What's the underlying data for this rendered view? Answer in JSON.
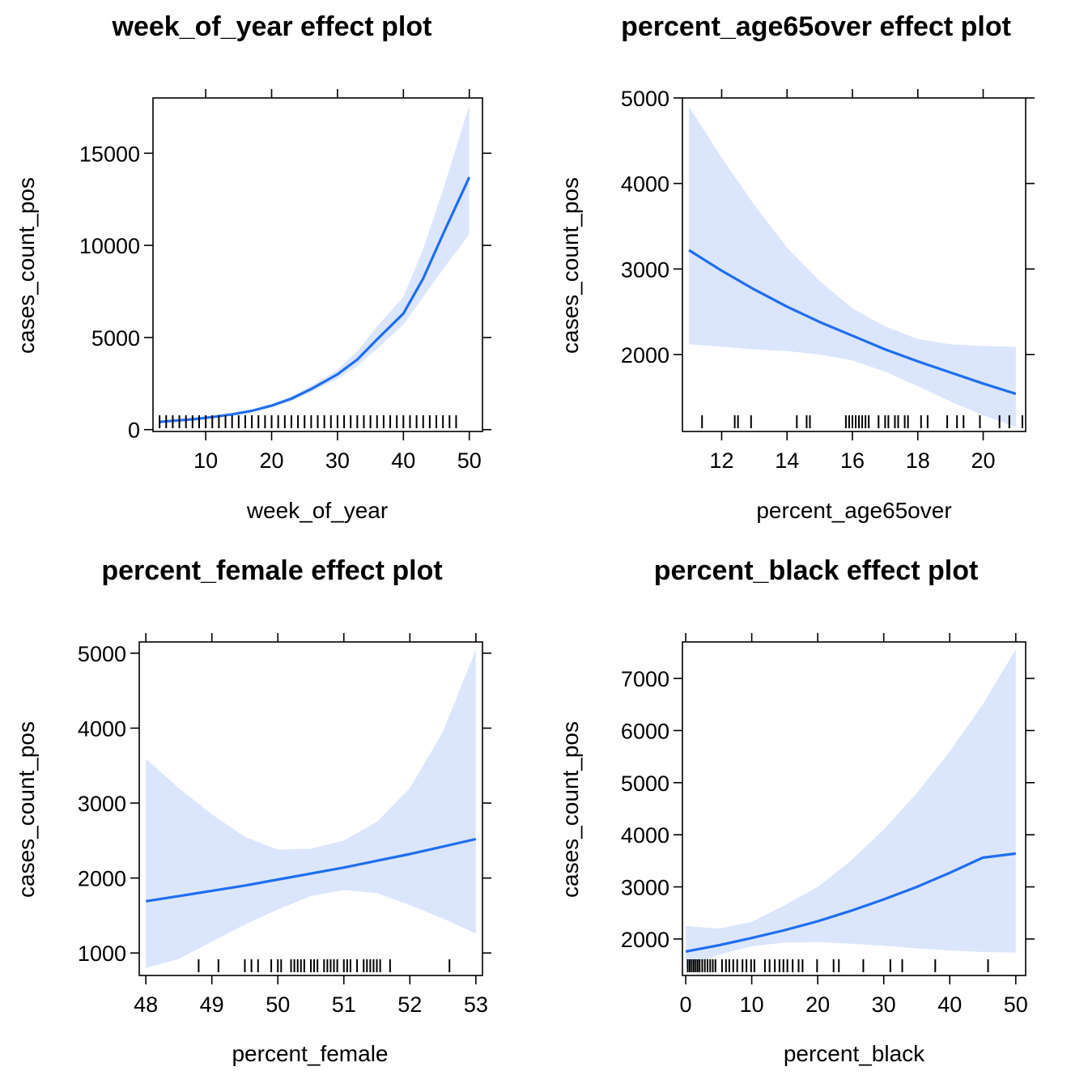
{
  "chart_data": [
    {
      "type": "line",
      "title": "week_of_year effect plot",
      "xlabel": "week_of_year",
      "ylabel": "cases_count_pos",
      "xlim": [
        2,
        52
      ],
      "ylim": [
        -100,
        18000
      ],
      "xticks": [
        10,
        20,
        30,
        40,
        50
      ],
      "yticks": [
        0,
        5000,
        10000,
        15000
      ],
      "colors": {
        "line": "#1f6ef0",
        "band": "#dbe6fd"
      },
      "series": [
        {
          "x": [
            3,
            5,
            8,
            11,
            14,
            17,
            20,
            23,
            26,
            30,
            33,
            36,
            40,
            43,
            46,
            50
          ],
          "y": [
            420,
            480,
            560,
            680,
            830,
            1020,
            1300,
            1680,
            2200,
            3000,
            3800,
            4900,
            6300,
            8200,
            10600,
            13700
          ],
          "lower": [
            380,
            440,
            520,
            630,
            770,
            960,
            1220,
            1570,
            2050,
            2750,
            3450,
            4400,
            5700,
            7200,
            8700,
            10600
          ],
          "upper": [
            470,
            530,
            610,
            740,
            900,
            1090,
            1400,
            1800,
            2380,
            3250,
            4250,
            5600,
            7200,
            9800,
            13000,
            17600
          ]
        }
      ],
      "rug": [
        3,
        4,
        5,
        6,
        7,
        8,
        9,
        10,
        11,
        12,
        13,
        14,
        15,
        16,
        17,
        18,
        19,
        20,
        21,
        22,
        23,
        24,
        25,
        26,
        27,
        28,
        29,
        30,
        31,
        32,
        33,
        34,
        35,
        36,
        37,
        38,
        39,
        40,
        41,
        42,
        43,
        44,
        45,
        46,
        47,
        48
      ]
    },
    {
      "type": "line",
      "title": "percent_age65over effect plot",
      "xlabel": "percent_age65over",
      "ylabel": "cases_count_pos",
      "xlim": [
        10.8,
        21.3
      ],
      "ylim": [
        1100,
        5000
      ],
      "xticks": [
        12,
        14,
        16,
        18,
        20
      ],
      "yticks": [
        2000,
        3000,
        4000,
        5000
      ],
      "colors": {
        "line": "#1f6ef0",
        "band": "#dbe6fd"
      },
      "series": [
        {
          "x": [
            11,
            12,
            13,
            14,
            15,
            16,
            17,
            18,
            19,
            20,
            21
          ],
          "y": [
            3220,
            2980,
            2760,
            2560,
            2380,
            2220,
            2060,
            1920,
            1790,
            1660,
            1540
          ],
          "lower": [
            2120,
            2090,
            2060,
            2040,
            2000,
            1930,
            1800,
            1630,
            1450,
            1290,
            1150
          ],
          "upper": [
            4900,
            4300,
            3750,
            3250,
            2860,
            2540,
            2330,
            2180,
            2120,
            2100,
            2090
          ]
        }
      ],
      "rug": [
        11.4,
        12.4,
        12.5,
        12.9,
        14.3,
        14.6,
        14.7,
        15.8,
        15.9,
        16.0,
        16.1,
        16.2,
        16.3,
        16.4,
        16.5,
        16.8,
        17.0,
        17.1,
        17.3,
        17.4,
        17.6,
        17.7,
        18.1,
        18.3,
        18.9,
        19.2,
        19.4,
        19.9,
        20.5,
        20.8,
        21.2
      ]
    },
    {
      "type": "line",
      "title": "percent_female effect plot",
      "xlabel": "percent_female",
      "ylabel": "cases_count_pos",
      "xlim": [
        47.9,
        53.1
      ],
      "ylim": [
        700,
        5150
      ],
      "xticks": [
        48,
        49,
        50,
        51,
        52,
        53
      ],
      "yticks": [
        1000,
        2000,
        3000,
        4000,
        5000
      ],
      "colors": {
        "line": "#1f6ef0",
        "band": "#dbe6fd"
      },
      "series": [
        {
          "x": [
            48,
            48.5,
            49,
            49.5,
            50,
            50.5,
            51,
            51.5,
            52,
            52.5,
            53
          ],
          "y": [
            1690,
            1760,
            1830,
            1900,
            1980,
            2060,
            2140,
            2230,
            2320,
            2420,
            2520
          ],
          "lower": [
            800,
            920,
            1150,
            1380,
            1580,
            1760,
            1840,
            1800,
            1640,
            1460,
            1260
          ],
          "upper": [
            3590,
            3200,
            2850,
            2550,
            2380,
            2390,
            2500,
            2750,
            3200,
            3950,
            5050
          ]
        }
      ],
      "rug": [
        48.8,
        49.1,
        49.5,
        49.6,
        49.7,
        49.9,
        50.0,
        50.05,
        50.2,
        50.25,
        50.3,
        50.35,
        50.4,
        50.5,
        50.55,
        50.6,
        50.7,
        50.75,
        50.8,
        50.85,
        50.9,
        51.0,
        51.05,
        51.1,
        51.2,
        51.3,
        51.35,
        51.4,
        51.45,
        51.5,
        51.55,
        51.7,
        52.6
      ]
    },
    {
      "type": "line",
      "title": "percent_black effect plot",
      "xlabel": "percent_black",
      "ylabel": "cases_count_pos",
      "xlim": [
        -0.5,
        51.5
      ],
      "ylim": [
        1300,
        7700
      ],
      "xticks": [
        0,
        10,
        20,
        30,
        40,
        50
      ],
      "yticks": [
        2000,
        3000,
        4000,
        5000,
        6000,
        7000
      ],
      "colors": {
        "line": "#1f6ef0",
        "band": "#dbe6fd"
      },
      "series": [
        {
          "x": [
            0,
            5,
            10,
            15,
            20,
            25,
            30,
            35,
            40,
            45,
            50
          ],
          "y": [
            1760,
            1880,
            2020,
            2170,
            2340,
            2540,
            2760,
            3000,
            3270,
            3560,
            3640
          ],
          "lower": [
            1450,
            1700,
            1860,
            1930,
            1940,
            1910,
            1870,
            1820,
            1780,
            1750,
            1740
          ],
          "upper": [
            2250,
            2200,
            2330,
            2650,
            3000,
            3500,
            4100,
            4800,
            5600,
            6500,
            7560
          ]
        }
      ],
      "rug": [
        0.3,
        0.6,
        0.9,
        1.2,
        1.5,
        1.8,
        2.1,
        2.5,
        2.9,
        3.3,
        3.7,
        4.1,
        4.5,
        5.5,
        6.1,
        6.6,
        7.2,
        7.8,
        8.6,
        9.2,
        9.9,
        10.4,
        12.0,
        12.7,
        13.5,
        14.2,
        14.8,
        15.4,
        16.2,
        17.1,
        17.7,
        19.9,
        22.4,
        23.2,
        26.9,
        31.0,
        32.8,
        37.8,
        45.8
      ]
    }
  ]
}
